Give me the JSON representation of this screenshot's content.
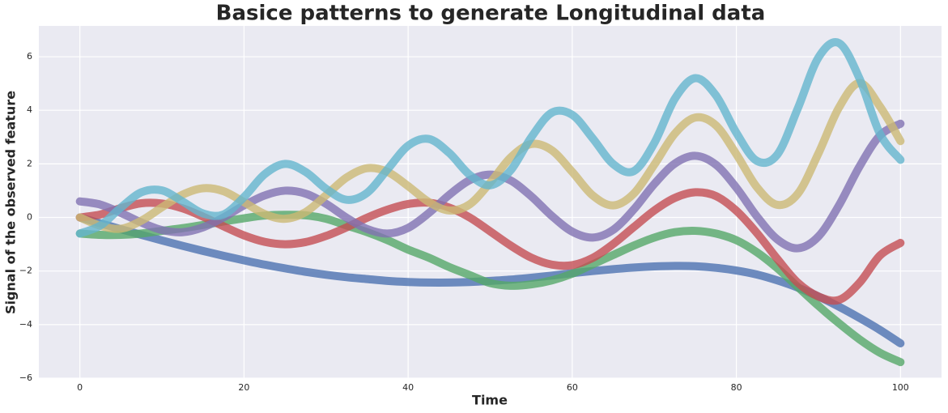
{
  "chart_data": {
    "type": "line",
    "title": "Basice patterns to generate Longitudinal data",
    "x_label": "Time",
    "y_label": "Signal of the observed feature",
    "x": [
      0,
      2.5,
      5,
      7.5,
      10,
      12.5,
      15,
      17.5,
      20,
      22.5,
      25,
      27.5,
      30,
      32.5,
      35,
      37.5,
      40,
      42.5,
      45,
      47.5,
      50,
      52.5,
      55,
      57.5,
      60,
      62.5,
      65,
      67.5,
      70,
      72.5,
      75,
      77.5,
      80,
      82.5,
      85,
      87.5,
      90,
      92.5,
      95,
      97.5,
      100
    ],
    "series": [
      {
        "color": "#4c72b0",
        "values": [
          0,
          -0.22,
          -0.44,
          -0.65,
          -0.86,
          -1.06,
          -1.25,
          -1.43,
          -1.6,
          -1.76,
          -1.9,
          -2.03,
          -2.14,
          -2.23,
          -2.3,
          -2.37,
          -2.41,
          -2.43,
          -2.43,
          -2.41,
          -2.37,
          -2.32,
          -2.25,
          -2.17,
          -2.08,
          -2.0,
          -1.93,
          -1.87,
          -1.83,
          -1.81,
          -1.82,
          -1.88,
          -1.98,
          -2.13,
          -2.35,
          -2.62,
          -2.95,
          -3.33,
          -3.75,
          -4.2,
          -4.7
        ]
      },
      {
        "color": "#55a868",
        "values": [
          -0.6,
          -0.65,
          -0.65,
          -0.6,
          -0.5,
          -0.4,
          -0.28,
          -0.15,
          -0.03,
          0.07,
          0.1,
          0.08,
          -0.05,
          -0.3,
          -0.55,
          -0.85,
          -1.2,
          -1.5,
          -1.85,
          -2.15,
          -2.45,
          -2.55,
          -2.5,
          -2.35,
          -2.1,
          -1.75,
          -1.4,
          -1.05,
          -0.75,
          -0.55,
          -0.5,
          -0.6,
          -0.85,
          -1.3,
          -1.9,
          -2.6,
          -3.3,
          -3.95,
          -4.55,
          -5.05,
          -5.4
        ]
      },
      {
        "color": "#c44e52",
        "values": [
          0,
          0.11,
          0.35,
          0.53,
          0.52,
          0.34,
          0.03,
          -0.33,
          -0.67,
          -0.91,
          -1.0,
          -0.92,
          -0.69,
          -0.37,
          -0.01,
          0.29,
          0.5,
          0.55,
          0.37,
          0.0,
          -0.52,
          -1.05,
          -1.5,
          -1.76,
          -1.78,
          -1.51,
          -0.99,
          -0.36,
          0.26,
          0.73,
          0.94,
          0.8,
          0.25,
          -0.58,
          -1.55,
          -2.44,
          -2.95,
          -3.08,
          -2.44,
          -1.42,
          -0.95
        ]
      },
      {
        "color": "#8172b2",
        "values": [
          0.6,
          0.48,
          0.17,
          -0.19,
          -0.47,
          -0.55,
          -0.37,
          0.0,
          0.45,
          0.82,
          1.0,
          0.89,
          0.51,
          -0.01,
          -0.43,
          -0.6,
          -0.39,
          0.16,
          0.84,
          1.39,
          1.6,
          1.38,
          0.79,
          0.06,
          -0.53,
          -0.75,
          -0.46,
          0.3,
          1.25,
          2.01,
          2.3,
          1.97,
          1.11,
          0.04,
          -0.82,
          -1.15,
          -0.71,
          0.45,
          1.9,
          3.06,
          3.5
        ]
      },
      {
        "color": "#ccb974",
        "values": [
          0,
          -0.31,
          -0.42,
          -0.12,
          0.38,
          0.85,
          1.09,
          0.98,
          0.57,
          0.13,
          -0.05,
          0.2,
          0.83,
          1.49,
          1.84,
          1.7,
          1.17,
          0.58,
          0.26,
          0.49,
          1.3,
          2.24,
          2.74,
          2.51,
          1.7,
          0.82,
          0.45,
          0.89,
          1.97,
          3.13,
          3.73,
          3.44,
          2.36,
          1.13,
          0.47,
          0.89,
          2.39,
          4.1,
          5.02,
          4.14,
          2.85
        ]
      },
      {
        "color": "#64b5cd",
        "values": [
          -0.6,
          -0.3,
          0.37,
          0.94,
          1.01,
          0.6,
          0.15,
          0.11,
          0.76,
          1.61,
          2.0,
          1.7,
          1.07,
          0.66,
          0.92,
          1.8,
          2.68,
          2.93,
          2.41,
          1.59,
          1.2,
          1.76,
          2.99,
          3.91,
          3.83,
          2.95,
          1.99,
          1.73,
          2.78,
          4.43,
          5.2,
          4.56,
          3.16,
          2.11,
          2.35,
          4.08,
          5.97,
          6.51,
          5.19,
          3.12,
          2.15
        ]
      }
    ],
    "xlim": [
      -5,
      105
    ],
    "ylim": [
      -6,
      7.15
    ],
    "xticks": [
      0,
      20,
      40,
      60,
      80,
      100
    ],
    "yticks": [
      {
        "value": -6,
        "label": "−6"
      },
      {
        "value": -4,
        "label": "−4"
      },
      {
        "value": -2,
        "label": "−2"
      },
      0,
      2,
      4,
      6
    ],
    "grid": true
  }
}
